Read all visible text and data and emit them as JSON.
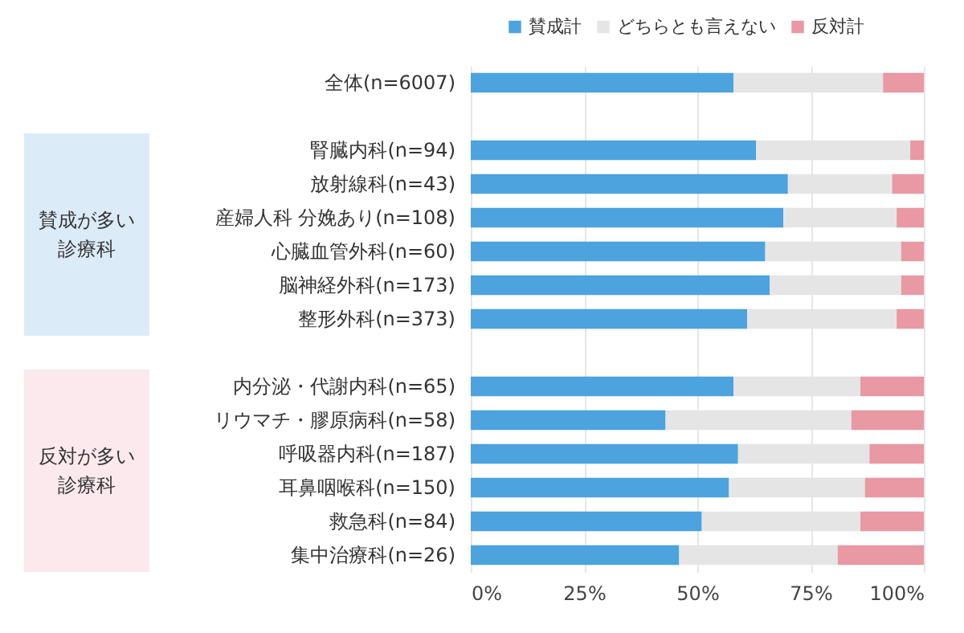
{
  "chart_data": {
    "type": "bar",
    "orientation": "horizontal",
    "stacked": true,
    "categories": [
      "全体(n=6007)",
      null,
      "腎臓内科(n=94)",
      "放射線科(n=43)",
      "産婦人科 分娩あり(n=108)",
      "心臓血管外科(n=60)",
      "脳神経外科(n=173)",
      "整形外科(n=373)",
      null,
      "内分泌・代謝内科(n=65)",
      "リウマチ・膠原病科(n=58)",
      "呼吸器内科(n=187)",
      "耳鼻咽喉科(n=150)",
      "救急科(n=84)",
      "集中治療科(n=26)"
    ],
    "series": [
      {
        "name": "賛成計",
        "color": "#4ca3de",
        "values": [
          58,
          null,
          63,
          70,
          69,
          65,
          66,
          61,
          null,
          58,
          43,
          59,
          57,
          51,
          46
        ]
      },
      {
        "name": "どちらとも言えない",
        "color": "#e5e5e5",
        "values": [
          33,
          null,
          34,
          23,
          25,
          30,
          29,
          33,
          null,
          28,
          41,
          29,
          30,
          35,
          35
        ]
      },
      {
        "name": "反対計",
        "color": "#e899a4",
        "values": [
          9,
          null,
          3,
          7,
          6,
          5,
          5,
          6,
          null,
          14,
          16,
          12,
          13,
          14,
          19
        ]
      }
    ],
    "xlim": [
      0,
      100
    ],
    "xticks": [
      {
        "value": 0,
        "label": "0%"
      },
      {
        "value": 25,
        "label": "25%"
      },
      {
        "value": 50,
        "label": "50%"
      },
      {
        "value": 75,
        "label": "75%"
      },
      {
        "value": 100,
        "label": "100%"
      }
    ],
    "grid": "x",
    "legend": "top right",
    "annotations": [
      "賛成が多い診療科",
      "反対が多い診療科"
    ]
  }
}
